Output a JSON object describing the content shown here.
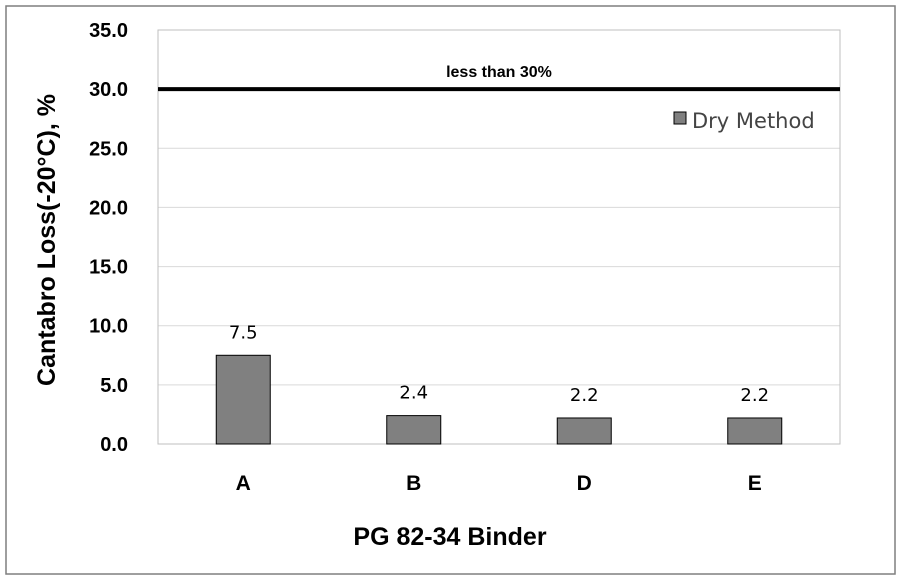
{
  "chart_data": {
    "type": "bar",
    "title": "",
    "xlabel": "PG 82-34 Binder",
    "ylabel": "Cantabro Loss(-20°C), %",
    "categories": [
      "A",
      "B",
      "D",
      "E"
    ],
    "series": [
      {
        "name": "Dry Method",
        "values": [
          7.5,
          2.4,
          2.2,
          2.2
        ],
        "labels": [
          "7.5",
          "2.4",
          "2.2",
          "2.2"
        ]
      }
    ],
    "ylim": [
      0,
      35
    ],
    "yticks": [
      0,
      5,
      10,
      15,
      20,
      25,
      30,
      35
    ],
    "ytick_labels": [
      "0.0",
      "5.0",
      "10.0",
      "15.0",
      "20.0",
      "25.0",
      "30.0",
      "35.0"
    ],
    "grid": true,
    "legend_position": "top-right",
    "reference_line": {
      "value": 30,
      "label": "less than 30%"
    },
    "colors": {
      "bar": "#808080",
      "bar_stroke": "#000000",
      "grid": "#d9d9d9",
      "reference": "#000000"
    }
  }
}
